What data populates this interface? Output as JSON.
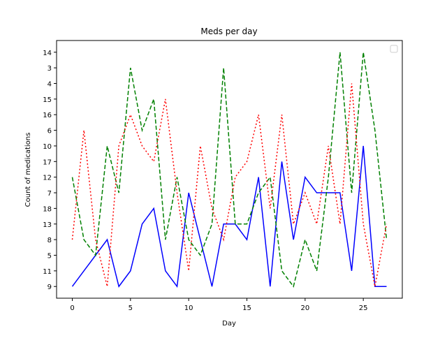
{
  "chart_data": {
    "type": "line",
    "title": "Meds per day",
    "xlabel": "Day",
    "ylabel": "Count of medications",
    "x": [
      0,
      1,
      2,
      3,
      4,
      5,
      6,
      7,
      8,
      9,
      10,
      11,
      12,
      13,
      14,
      15,
      16,
      17,
      18,
      19,
      20,
      21,
      22,
      23,
      24,
      25,
      26,
      27
    ],
    "xlim": [
      -1.35,
      28.35
    ],
    "xticks": [
      0,
      5,
      10,
      15,
      20,
      25
    ],
    "ylim": [
      -0.75,
      15.75
    ],
    "yticks": [
      {
        "value": 0,
        "label": "9"
      },
      {
        "value": 1,
        "label": "11"
      },
      {
        "value": 2,
        "label": "5"
      },
      {
        "value": 3,
        "label": "8"
      },
      {
        "value": 4,
        "label": "13"
      },
      {
        "value": 5,
        "label": "18"
      },
      {
        "value": 6,
        "label": "7"
      },
      {
        "value": 7,
        "label": "12"
      },
      {
        "value": 8,
        "label": "17"
      },
      {
        "value": 9,
        "label": "10"
      },
      {
        "value": 10,
        "label": "6"
      },
      {
        "value": 11,
        "label": "16"
      },
      {
        "value": 12,
        "label": "15"
      },
      {
        "value": 13,
        "label": "4"
      },
      {
        "value": 14,
        "label": "3"
      },
      {
        "value": 15,
        "label": "14"
      }
    ],
    "legend_loc": "upper right",
    "series": [
      {
        "color": "#0000ff",
        "linestyle": "solid",
        "values": [
          0,
          1,
          2,
          3,
          0,
          1,
          4,
          5,
          1,
          0,
          6,
          3,
          0,
          4,
          4,
          3,
          7,
          0,
          8,
          3,
          7,
          6,
          6,
          6,
          1,
          9,
          0,
          0
        ]
      },
      {
        "color": "#008000",
        "linestyle": "dashed",
        "values": [
          7,
          3,
          2,
          9,
          6,
          14,
          10,
          12,
          3,
          7,
          3,
          2,
          4,
          14,
          4,
          4,
          6,
          7,
          1,
          0,
          3,
          1,
          7,
          15,
          6,
          15,
          10,
          3
        ]
      },
      {
        "color": "#ff0000",
        "linestyle": "dotted",
        "values": [
          3,
          10,
          3,
          0,
          9,
          11,
          9,
          8,
          12,
          6,
          1,
          9,
          5,
          3,
          7,
          8,
          11,
          5,
          11,
          4,
          6,
          4,
          9,
          4,
          13,
          4,
          0,
          4
        ]
      }
    ]
  }
}
